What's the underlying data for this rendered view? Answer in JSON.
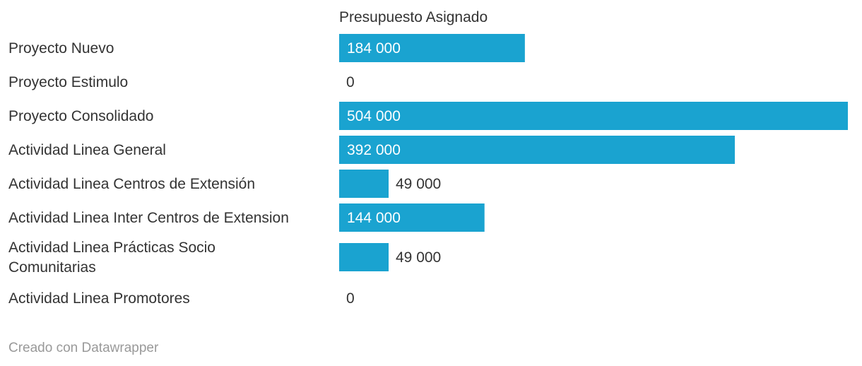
{
  "chart_data": {
    "type": "bar",
    "orientation": "horizontal",
    "column_header": "Presupuesto Asignado",
    "categories": [
      [
        "Proyecto Nuevo"
      ],
      [
        "Proyecto Estimulo"
      ],
      [
        "Proyecto Consolidado"
      ],
      [
        "Actividad Linea General"
      ],
      [
        "Actividad Linea Centros de Extensión"
      ],
      [
        "Actividad Linea Inter Centros de Extension"
      ],
      [
        "Actividad Linea Prácticas Socio",
        "Comunitarias"
      ],
      [
        "Actividad Linea Promotores"
      ]
    ],
    "values": [
      184000,
      0,
      504000,
      392000,
      49000,
      144000,
      49000,
      0
    ],
    "value_labels": [
      "184 000",
      "0",
      "504 000",
      "392 000",
      "49 000",
      "144 000",
      "49 000",
      "0"
    ],
    "xlim": [
      0,
      504000
    ],
    "bar_color": "#1aa3d0",
    "label_inside_color": "#ffffff",
    "label_outside_color": "#333333",
    "grid": false,
    "legend": "none"
  },
  "footer": {
    "credit": "Creado con Datawrapper"
  }
}
